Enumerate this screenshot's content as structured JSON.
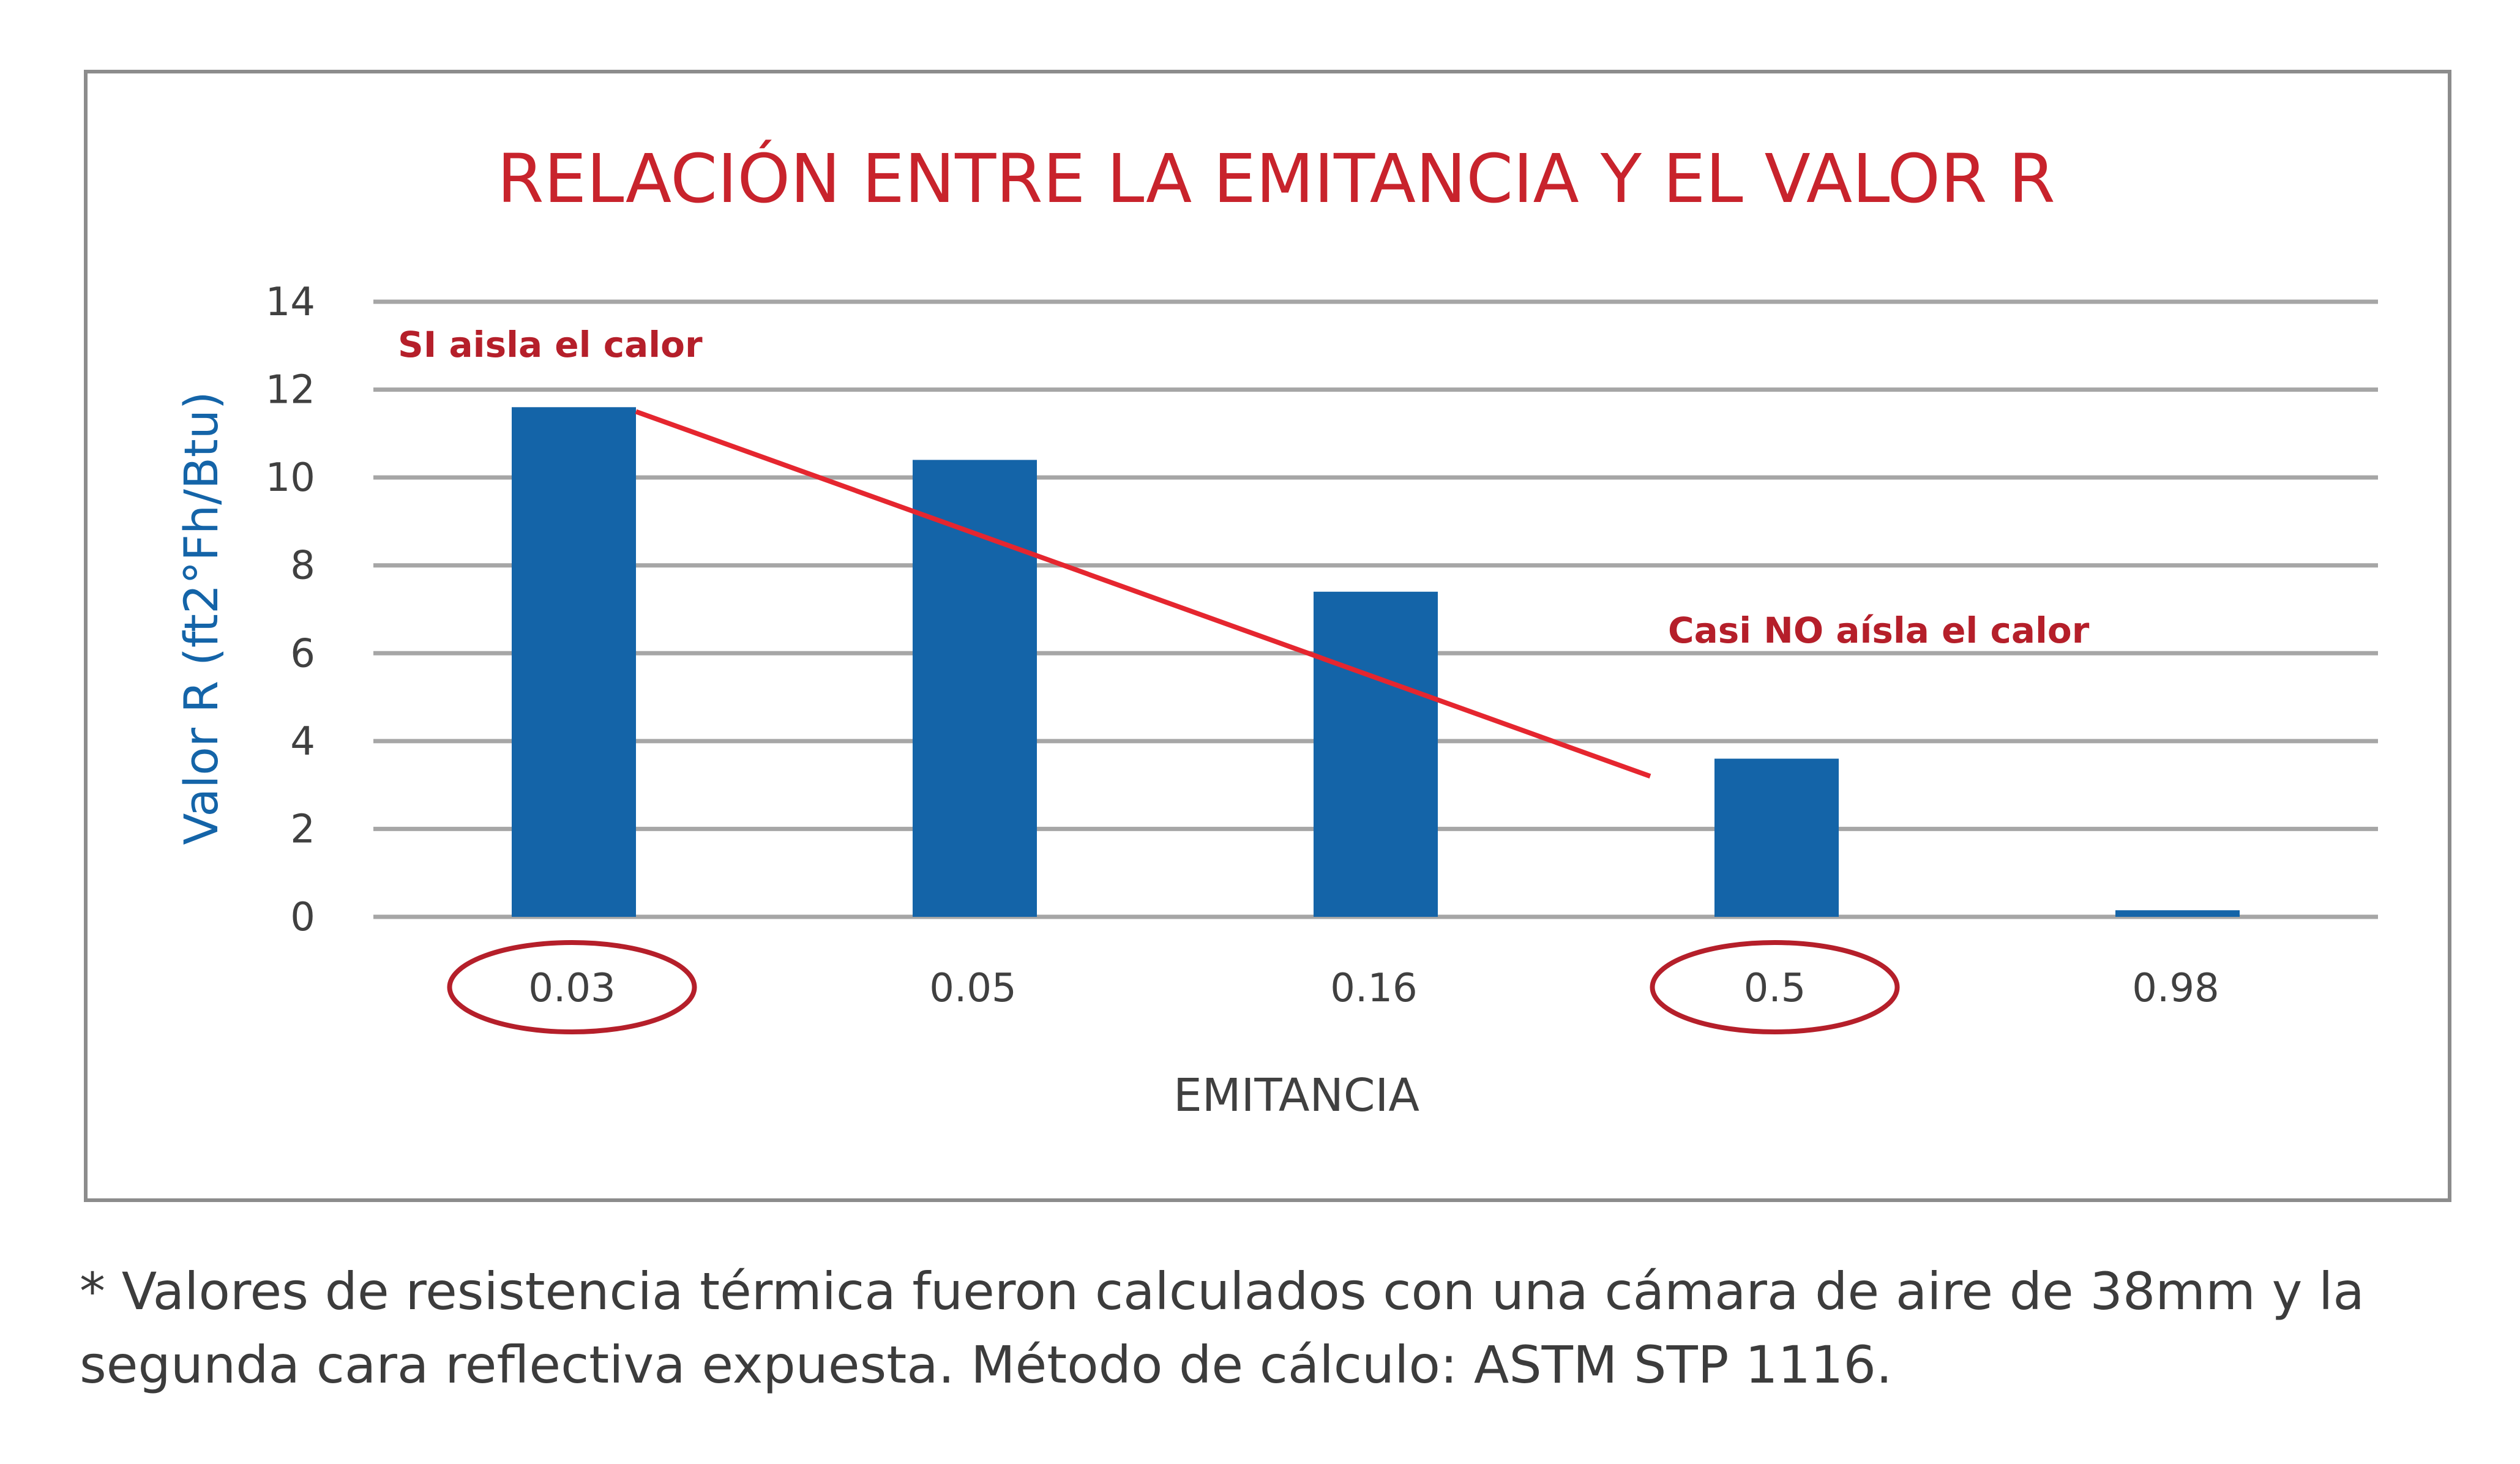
{
  "chart_data": {
    "type": "bar",
    "title": "RELACIÓN ENTRE LA EMITANCIA Y EL VALOR R",
    "xlabel": "EMITANCIA",
    "ylabel": "Valor R (ft2°Fh/Btu)",
    "categories": [
      "0.03",
      "0.05",
      "0.16",
      "0.5",
      "0.98"
    ],
    "values": [
      11.6,
      10.4,
      7.4,
      3.6,
      0.15
    ],
    "ylim": [
      0,
      14
    ],
    "yticks": [
      "0",
      "2",
      "4",
      "6",
      "8",
      "10",
      "12",
      "14"
    ],
    "grid": "horizontal",
    "bar_color": "#1464a8",
    "trend_line": {
      "color": "#e5262f",
      "from_category": "0.03",
      "from_value": 11.5,
      "to_category": "0.5",
      "to_value": 3.2
    },
    "highlighted_categories": [
      "0.03",
      "0.5"
    ],
    "annotations": [
      {
        "text": "SI aisla el calor",
        "color": "#b51f2a"
      },
      {
        "text": "Casi NO aísla el calor",
        "color": "#b51f2a"
      }
    ]
  },
  "footnote": {
    "line1": "* Valores de resistencia térmica fueron calculados con una cámara de aire de 38mm y la",
    "line2": "segunda cara reflectiva expuesta. Método de cálculo: ASTM STP 1116."
  }
}
